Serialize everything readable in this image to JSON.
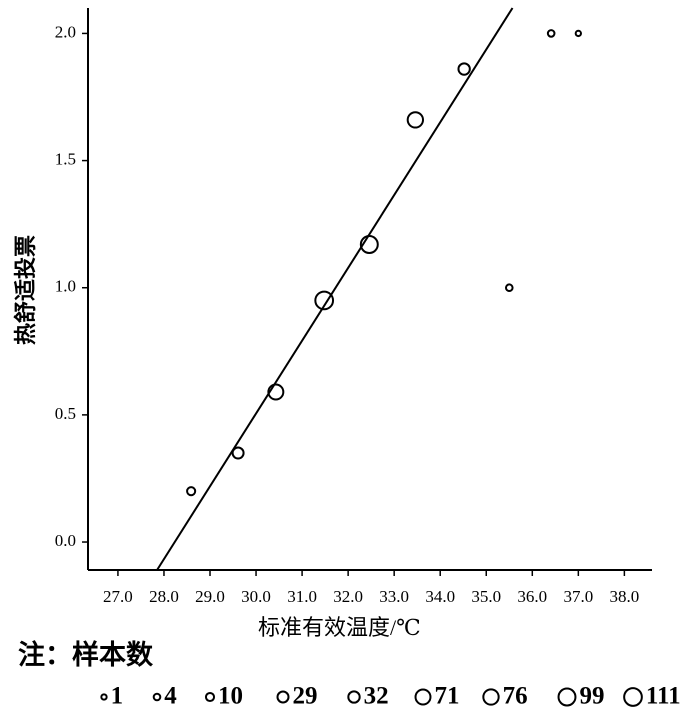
{
  "chart_data": {
    "type": "bubble",
    "x_label": "标准有效温度/℃",
    "y_label": "热舒适投票",
    "x": [
      28.59,
      29.61,
      30.43,
      31.48,
      32.46,
      33.46,
      34.52,
      35.5,
      36.41,
      37.0
    ],
    "values": [
      0.2,
      0.35,
      0.59,
      0.95,
      1.17,
      1.66,
      1.86,
      1.0,
      2.0,
      2.0
    ],
    "sizes": [
      10,
      29,
      71,
      111,
      99,
      76,
      32,
      4,
      4,
      1
    ],
    "trendline": {
      "x": [
        27.85,
        35.57
      ],
      "y": [
        -0.11,
        2.1
      ]
    },
    "xlim": [
      26.35,
      38.6
    ],
    "ylim": [
      -0.11,
      2.1
    ],
    "xticks": [
      {
        "value": 27,
        "label": "27.0"
      },
      {
        "value": 28,
        "label": "28.0"
      },
      {
        "value": 29,
        "label": "29.0"
      },
      {
        "value": 30,
        "label": "30.0"
      },
      {
        "value": 31,
        "label": "31.0"
      },
      {
        "value": 32,
        "label": "32.0"
      },
      {
        "value": 33,
        "label": "33.0"
      },
      {
        "value": 34,
        "label": "34.0"
      },
      {
        "value": 35,
        "label": "35.0"
      },
      {
        "value": 36,
        "label": "36.0"
      },
      {
        "value": 37,
        "label": "37.0"
      },
      {
        "value": 38,
        "label": "38.0"
      }
    ],
    "yticks": [
      {
        "value": 0,
        "label": "0.0"
      },
      0.5,
      {
        "value": 1,
        "label": "1.0"
      },
      1.5,
      {
        "value": 2,
        "label": "2.0"
      }
    ],
    "size_legend": {
      "title": "注：样本数",
      "values": [
        1,
        4,
        10,
        29,
        32,
        71,
        76,
        99,
        111
      ]
    }
  }
}
